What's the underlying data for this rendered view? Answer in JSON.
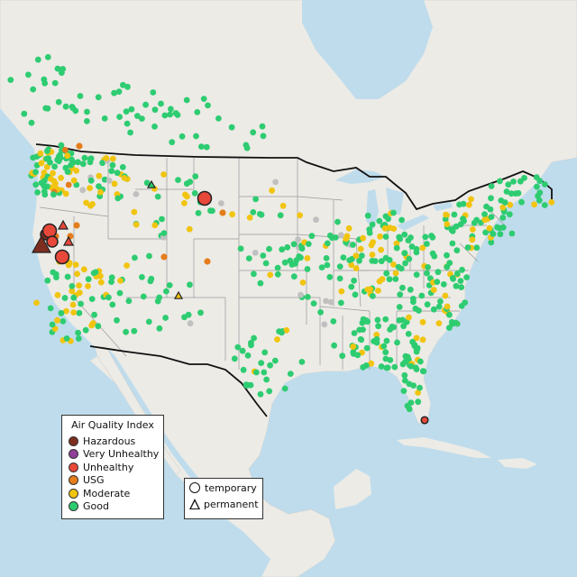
{
  "legend": {
    "title": "Air Quality Index",
    "categories": [
      {
        "label": "Hazardous",
        "color": "#7e2e1f"
      },
      {
        "label": "Very Unhealthy",
        "color": "#8f3f97"
      },
      {
        "label": "Unhealthy",
        "color": "#e8483a"
      },
      {
        "label": "USG",
        "color": "#e57d1c"
      },
      {
        "label": "Moderate",
        "color": "#f1c40f"
      },
      {
        "label": "Good",
        "color": "#2ecc71"
      }
    ],
    "no_data_color": "#c0c0c0",
    "types": [
      {
        "label": "temporary",
        "shape": "circle-icon"
      },
      {
        "label": "permanent",
        "shape": "triangle-icon"
      }
    ]
  },
  "colors": {
    "water": "#bfdcec",
    "land": "#ecebe6",
    "border": "#111111",
    "state_border": "#9a9a9a"
  }
}
